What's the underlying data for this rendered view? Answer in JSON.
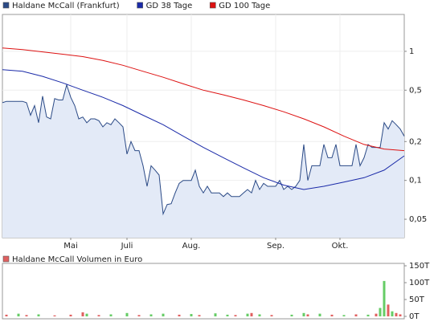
{
  "chart_data": [
    {
      "type": "line",
      "log_scale": true,
      "grid": true,
      "x": [
        0,
        1,
        2,
        3,
        4,
        5,
        6,
        7,
        8,
        9,
        10,
        11,
        12,
        13,
        14,
        15,
        16,
        17,
        18,
        19,
        20,
        21,
        22,
        23,
        24,
        25,
        26,
        27,
        28,
        29,
        30,
        31,
        32,
        33,
        34,
        35,
        36,
        37,
        38,
        39,
        40,
        41,
        42,
        43,
        44,
        45,
        46,
        47,
        48,
        49,
        50,
        51,
        52,
        53,
        54,
        55,
        56,
        57,
        58,
        59,
        60,
        61,
        62,
        63,
        64,
        65,
        66,
        67,
        68,
        69,
        70,
        71,
        72,
        73,
        74,
        75,
        76,
        77,
        78,
        79,
        80,
        81,
        82,
        83,
        84,
        85,
        86,
        87,
        88,
        89,
        90,
        91,
        92,
        93,
        94,
        95,
        96,
        97,
        98,
        99,
        100
      ],
      "xlim": [
        0,
        100
      ],
      "xticks": [
        {
          "value": 17,
          "label": "Mai"
        },
        {
          "value": 31,
          "label": "Juli"
        },
        {
          "value": 47,
          "label": "Aug."
        },
        {
          "value": 68,
          "label": "Sep."
        },
        {
          "value": 84,
          "label": "Okt."
        }
      ],
      "ylim": [
        0.036,
        1.93
      ],
      "yticks": [
        1,
        {
          "value": 0.5,
          "label": "0,5"
        },
        {
          "value": 0.2,
          "label": "0,2"
        },
        {
          "value": 0.1,
          "label": "0,1"
        },
        {
          "value": 0.05,
          "label": "0,05"
        }
      ],
      "series": [
        {
          "name": "Haldane McCall (Frankfurt)",
          "color": "#2b4a86",
          "fill": "#e3eaf7",
          "values": [
            0.4,
            0.41,
            0.41,
            0.41,
            0.41,
            0.41,
            0.4,
            0.32,
            0.38,
            0.28,
            0.45,
            0.31,
            0.3,
            0.43,
            0.42,
            0.42,
            0.55,
            0.44,
            0.38,
            0.3,
            0.31,
            0.28,
            0.3,
            0.3,
            0.29,
            0.26,
            0.28,
            0.27,
            0.3,
            0.28,
            0.26,
            0.16,
            0.2,
            0.17,
            0.17,
            0.13,
            0.09,
            0.13,
            0.12,
            0.11,
            0.055,
            0.065,
            0.066,
            0.08,
            0.095,
            0.1,
            0.1,
            0.1,
            0.12,
            0.09,
            0.08,
            0.09,
            0.08,
            0.08,
            0.08,
            0.075,
            0.08,
            0.075,
            0.075,
            0.075,
            0.08,
            0.085,
            0.08,
            0.1,
            0.085,
            0.095,
            0.09,
            0.09,
            0.09,
            0.1,
            0.085,
            0.09,
            0.085,
            0.09,
            0.1,
            0.19,
            0.1,
            0.13,
            0.13,
            0.13,
            0.19,
            0.15,
            0.15,
            0.19,
            0.13,
            0.13,
            0.13,
            0.13,
            0.19,
            0.13,
            0.15,
            0.19,
            0.18,
            0.18,
            0.18,
            0.28,
            0.25,
            0.29,
            0.27,
            0.25,
            0.22
          ]
        },
        {
          "name": "GD 38 Tage",
          "color": "#1a2aa8",
          "x": [
            0,
            5,
            10,
            15,
            20,
            25,
            30,
            35,
            40,
            45,
            50,
            55,
            60,
            65,
            70,
            75,
            80,
            85,
            90,
            95,
            100
          ],
          "values": [
            0.72,
            0.7,
            0.64,
            0.57,
            0.5,
            0.44,
            0.38,
            0.32,
            0.27,
            0.22,
            0.18,
            0.15,
            0.125,
            0.105,
            0.092,
            0.085,
            0.09,
            0.097,
            0.105,
            0.12,
            0.155
          ]
        },
        {
          "name": "GD 100 Tage",
          "color": "#dd1111",
          "x": [
            0,
            5,
            10,
            15,
            20,
            25,
            30,
            35,
            40,
            45,
            50,
            55,
            60,
            65,
            70,
            75,
            80,
            85,
            90,
            95,
            100
          ],
          "values": [
            1.06,
            1.03,
            0.99,
            0.95,
            0.91,
            0.85,
            0.78,
            0.7,
            0.63,
            0.56,
            0.5,
            0.46,
            0.42,
            0.38,
            0.34,
            0.3,
            0.26,
            0.22,
            0.19,
            0.175,
            0.17
          ]
        }
      ]
    },
    {
      "type": "bar",
      "xlim": [
        0,
        100
      ],
      "ylim": [
        0,
        150000
      ],
      "yticks": [
        {
          "value": 150000,
          "label": "150T"
        },
        {
          "value": 100000,
          "label": "100T"
        },
        {
          "value": 50000,
          "label": "50T"
        },
        {
          "value": 0,
          "label": "0T"
        }
      ],
      "series": [
        {
          "name": "Haldane McCall Volumen in Euro",
          "color": "#e06060",
          "x": [
            1,
            4,
            6,
            9,
            13,
            17,
            20,
            21,
            24,
            27,
            31,
            34,
            37,
            40,
            44,
            47,
            49,
            53,
            56,
            58,
            61,
            62,
            64,
            67,
            72,
            75,
            76,
            79,
            82,
            85,
            88,
            91,
            93,
            94,
            95,
            96,
            97,
            98,
            99
          ],
          "values": [
            5000,
            8000,
            4000,
            6000,
            3000,
            5000,
            12000,
            8000,
            4000,
            6000,
            10000,
            4000,
            6000,
            8000,
            5000,
            7000,
            4000,
            9000,
            5000,
            4000,
            8000,
            10000,
            6000,
            4000,
            5000,
            10000,
            6000,
            8000,
            5000,
            4000,
            6000,
            5000,
            8000,
            25000,
            105000,
            35000,
            15000,
            10000,
            6000
          ],
          "colors": [
            "#e06060",
            "#66cc66",
            "#e06060",
            "#66cc66",
            "#e06060",
            "#e06060",
            "#e06060",
            "#66cc66",
            "#e06060",
            "#66cc66",
            "#66cc66",
            "#e06060",
            "#66cc66",
            "#66cc66",
            "#e06060",
            "#66cc66",
            "#e06060",
            "#66cc66",
            "#66cc66",
            "#e06060",
            "#66cc66",
            "#e06060",
            "#66cc66",
            "#e06060",
            "#66cc66",
            "#66cc66",
            "#e06060",
            "#66cc66",
            "#e06060",
            "#66cc66",
            "#e06060",
            "#66cc66",
            "#e06060",
            "#66cc66",
            "#66cc66",
            "#e06060",
            "#66cc66",
            "#e06060",
            "#e06060"
          ]
        }
      ]
    }
  ]
}
